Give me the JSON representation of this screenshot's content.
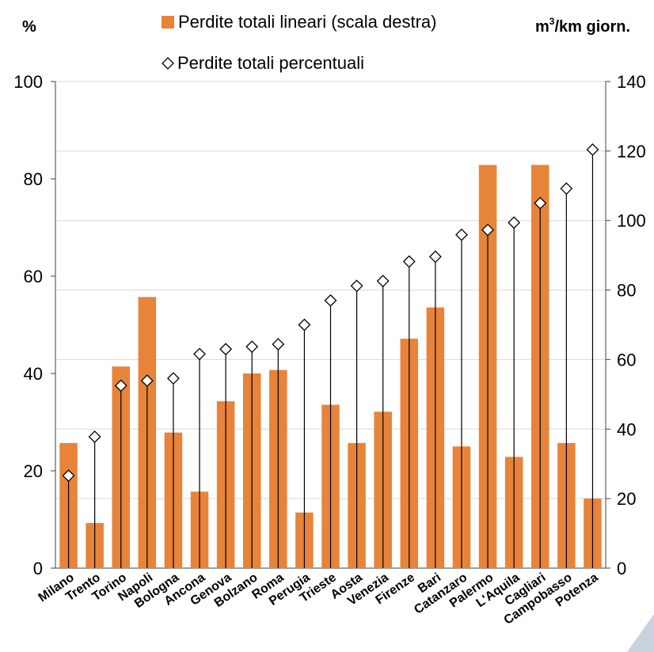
{
  "chart_data": {
    "type": "bar",
    "left_unit": "%",
    "right_unit": "m³/km giorn.",
    "right_unit_base": "m",
    "right_unit_sup": "3",
    "right_unit_rest": "/km giorn.",
    "categories": [
      "Milano",
      "Trento",
      "Torino",
      "Napoli",
      "Bologna",
      "Ancona",
      "Genova",
      "Bolzano",
      "Roma",
      "Perugia",
      "Trieste",
      "Aosta",
      "Venezia",
      "Firenze",
      "Bari",
      "Catanzaro",
      "Palermo",
      "L'Aquila",
      "Cagliari",
      "Campobasso",
      "Potenza"
    ],
    "series": [
      {
        "name": "Perdite totali lineari (scala destra)",
        "type": "bar",
        "axis": "right",
        "color": "#E8833A",
        "values": [
          36,
          13,
          58,
          78,
          39,
          22,
          48,
          56,
          57,
          16,
          47,
          36,
          45,
          66,
          75,
          35,
          116,
          32,
          116,
          36,
          20
        ]
      },
      {
        "name": "Perdite totali percentuali",
        "type": "scatter",
        "marker": "diamond",
        "axis": "left",
        "values": [
          19,
          27,
          37.5,
          38.5,
          39,
          44,
          45,
          45.5,
          46,
          50,
          55,
          58,
          59,
          63,
          64,
          68.5,
          69.5,
          71,
          75,
          78,
          86
        ]
      }
    ],
    "left_axis": {
      "ylim": [
        0,
        100
      ],
      "ticks": [
        0,
        20,
        40,
        60,
        80,
        100
      ]
    },
    "right_axis": {
      "ylim": [
        0,
        140
      ],
      "ticks": [
        0,
        20,
        40,
        60,
        80,
        100,
        120,
        140
      ]
    },
    "grid": true,
    "legend_position": "top"
  }
}
